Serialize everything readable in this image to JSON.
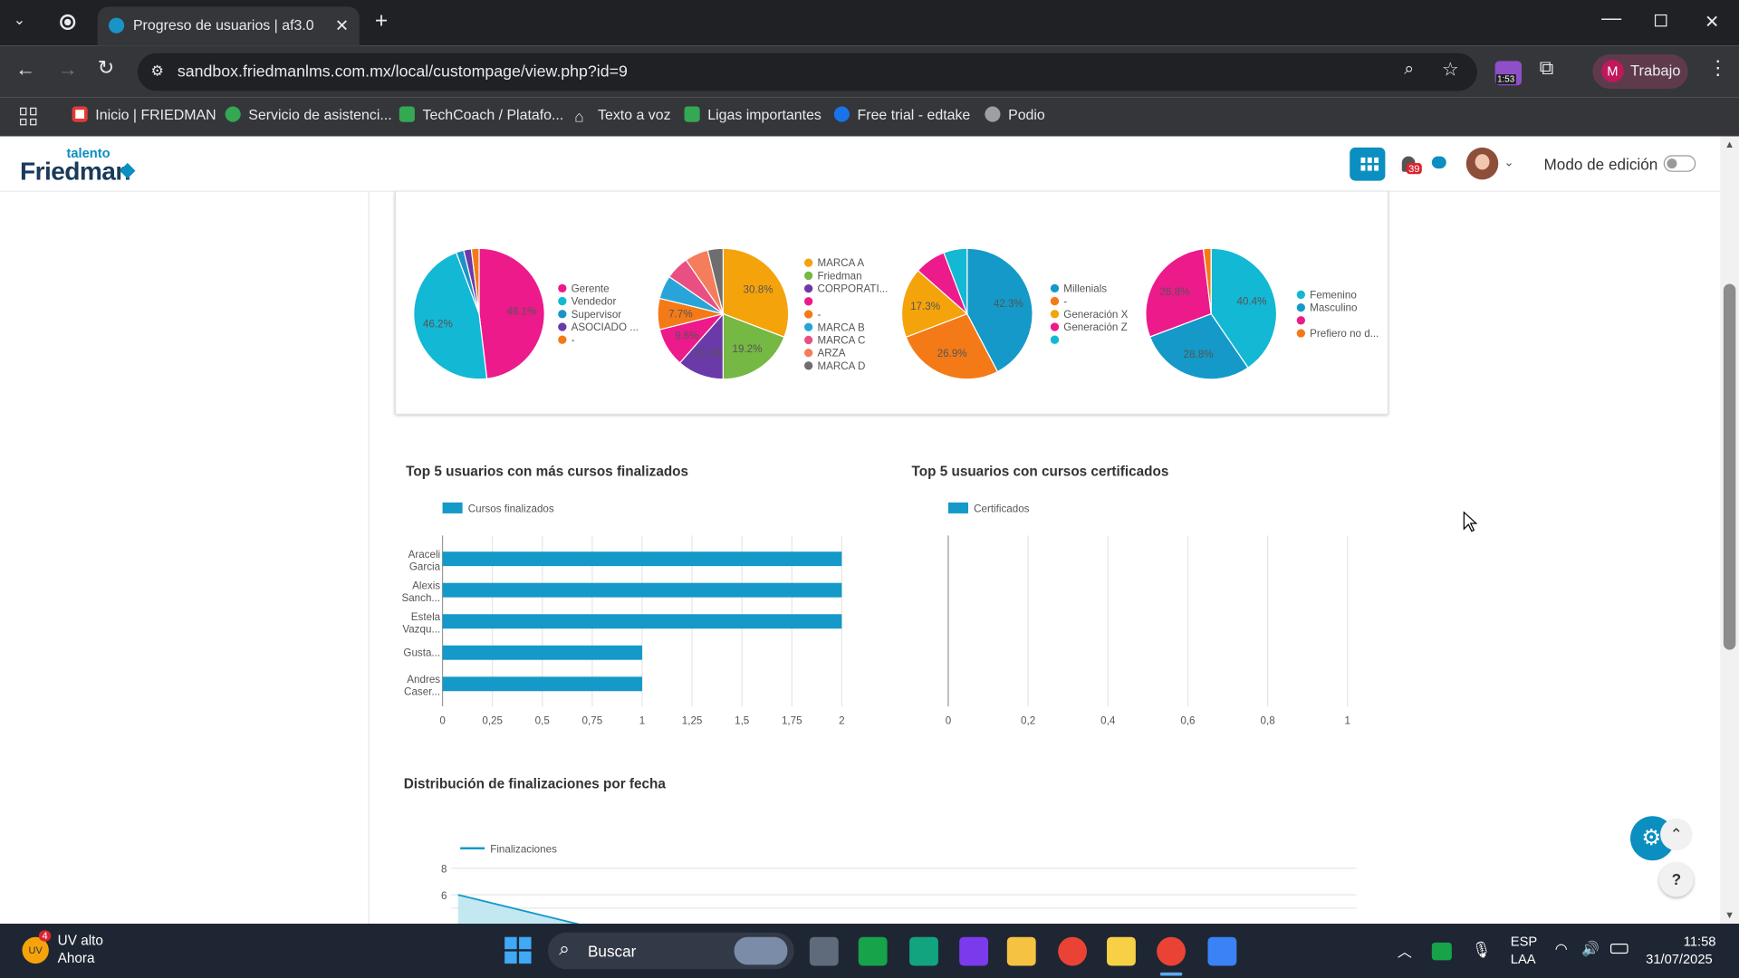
{
  "browser": {
    "tab_title": "Progreso de usuarios | af3.0",
    "url": "sandbox.friedmanlms.com.mx/local/custompage/view.php?id=9",
    "profile_initial": "M",
    "profile_name": "Trabajo",
    "ext_badge": "1:53",
    "bookmarks": [
      "Inicio | FRIEDMAN",
      "Servicio de asistenci...",
      "TechCoach / Platafo...",
      "Texto a voz",
      "Ligas importantes",
      "Free trial - edtake",
      "Podio"
    ]
  },
  "header": {
    "logo_small": "talento",
    "logo_big": "Friedman",
    "notif_count": "39",
    "edit_mode_label": "Modo de edición"
  },
  "pies": [
    {
      "slices": [
        {
          "label": "Gerente",
          "value": 48.1,
          "color": "#ec1a8b",
          "shown": "48.1%"
        },
        {
          "label": "Vendedor",
          "value": 46.2,
          "color": "#13b8d4",
          "shown": "46.2%"
        },
        {
          "label": "Supervisor",
          "value": 1.9,
          "color": "#1a94c7",
          "shown": ""
        },
        {
          "label": "ASOCIADO ...",
          "value": 1.9,
          "color": "#6a3aa8",
          "shown": ""
        },
        {
          "label": "-",
          "value": 1.9,
          "color": "#f47a17",
          "shown": ""
        }
      ]
    },
    {
      "slices": [
        {
          "label": "MARCA A",
          "value": 30.8,
          "color": "#f5a30b",
          "shown": "30.8%"
        },
        {
          "label": "Friedman",
          "value": 19.2,
          "color": "#75b843",
          "shown": "19.2%"
        },
        {
          "label": "CORPORATI...",
          "value": 11.5,
          "color": "#6a3aa8",
          "shown": "11.5%"
        },
        {
          "label": "",
          "value": 9.6,
          "color": "#ec1a8b",
          "shown": "9.6%"
        },
        {
          "label": "-",
          "value": 7.7,
          "color": "#f47a17",
          "shown": "7.7%"
        },
        {
          "label": "MARCA B",
          "value": 5.8,
          "color": "#29a4d9",
          "shown": ""
        },
        {
          "label": "MARCA C",
          "value": 5.8,
          "color": "#ea4f84",
          "shown": ""
        },
        {
          "label": "ARZA",
          "value": 5.8,
          "color": "#f57d5b",
          "shown": ""
        },
        {
          "label": "MARCA D",
          "value": 3.8,
          "color": "#6e6e6e",
          "shown": ""
        }
      ]
    },
    {
      "slices": [
        {
          "label": "Millenials",
          "value": 42.3,
          "color": "#1499c9",
          "shown": "42.3%"
        },
        {
          "label": "-",
          "value": 26.9,
          "color": "#f47a17",
          "shown": "26.9%"
        },
        {
          "label": "Generación X",
          "value": 17.3,
          "color": "#f5a30b",
          "shown": "17.3%"
        },
        {
          "label": "Generación Z",
          "value": 7.7,
          "color": "#ec1a8b",
          "shown": ""
        },
        {
          "label": "",
          "value": 5.8,
          "color": "#13b8d4",
          "shown": ""
        }
      ]
    },
    {
      "slices": [
        {
          "label": "Femenino",
          "value": 40.4,
          "color": "#13b8d4",
          "shown": "40.4%"
        },
        {
          "label": "Masculino",
          "value": 28.8,
          "color": "#1499c9",
          "shown": "28.8%"
        },
        {
          "label": "",
          "value": 28.8,
          "color": "#ec1a8b",
          "shown": "28.8%"
        },
        {
          "label": "Prefiero no d...",
          "value": 1.9,
          "color": "#f47a17",
          "shown": ""
        }
      ]
    }
  ],
  "chart_data": [
    {
      "type": "bar",
      "title": "Top 5 usuarios con más cursos finalizados",
      "orientation": "horizontal",
      "categories": [
        [
          "Araceli",
          "Garcia"
        ],
        [
          "Alexis",
          "Sanch..."
        ],
        [
          "Estela",
          "Vazqu..."
        ],
        [
          "Gusta..."
        ],
        [
          "Andres",
          "Caser..."
        ]
      ],
      "series": [
        {
          "name": "Cursos finalizados",
          "values": [
            2,
            2,
            2,
            1,
            1
          ],
          "color": "#1499c9"
        }
      ],
      "xlim": [
        0,
        2
      ],
      "ticks": [
        "0",
        "0,25",
        "0,5",
        "0,75",
        "1",
        "1,25",
        "1,5",
        "1,75",
        "2"
      ],
      "grid": true
    },
    {
      "type": "bar",
      "title": "Top 5 usuarios con cursos certificados",
      "orientation": "horizontal",
      "categories": [],
      "series": [
        {
          "name": "Certificados",
          "values": [],
          "color": "#1499c9"
        }
      ],
      "xlim": [
        0,
        1
      ],
      "ticks": [
        "0",
        "0,2",
        "0,4",
        "0,6",
        "0,8",
        "1"
      ],
      "grid": true
    },
    {
      "type": "area",
      "title": "Distribución de finalizaciones por fecha",
      "series": [
        {
          "name": "Finalizaciones",
          "color": "#1499c9"
        }
      ],
      "y_ticks": [
        "8",
        "6"
      ]
    }
  ],
  "taskbar": {
    "weather_badge": "4",
    "weather_icon_text": "UV",
    "weather_title": "UV alto",
    "weather_sub": "Ahora",
    "search_label": "Buscar",
    "lang1": "ESP",
    "lang2": "LAA",
    "time": "11:58",
    "date": "31/07/2025"
  }
}
